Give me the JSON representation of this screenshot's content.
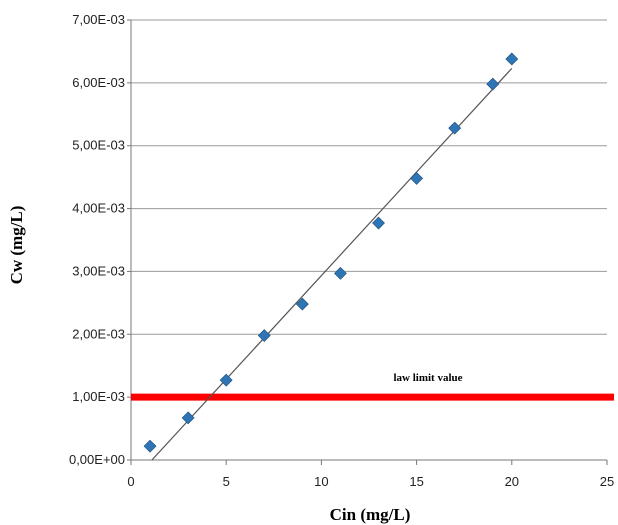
{
  "chart_data": {
    "type": "scatter",
    "title": "",
    "xlabel": "Cin (mg/L)",
    "ylabel": "Cw (mg/L)",
    "xlim": [
      0,
      25
    ],
    "ylim": [
      0,
      0.007
    ],
    "x_ticks": [
      0,
      5,
      10,
      15,
      20,
      25
    ],
    "x_tick_labels": [
      "0",
      "5",
      "10",
      "15",
      "20",
      "25"
    ],
    "y_ticks": [
      0,
      0.001,
      0.002,
      0.003,
      0.004,
      0.005,
      0.006,
      0.007
    ],
    "y_tick_labels": [
      "0,00E+00",
      "1,00E-03",
      "2,00E-03",
      "3,00E-03",
      "4,00E-03",
      "5,00E-03",
      "6,00E-03",
      "7,00E-03"
    ],
    "grid": "horizontal",
    "legend": "none",
    "series": [
      {
        "marker": "diamond",
        "color": "#2e75b6",
        "x": [
          1,
          3,
          5,
          7,
          9,
          11,
          13,
          15,
          17,
          19,
          20
        ],
        "y": [
          0.00022,
          0.00067,
          0.00127,
          0.00198,
          0.00248,
          0.00297,
          0.00377,
          0.00448,
          0.00528,
          0.00598,
          0.00638
        ]
      }
    ],
    "trendline": {
      "color": "#555555",
      "points": [
        [
          1.1,
          0
        ],
        [
          20,
          0.00623
        ]
      ]
    },
    "reference_line": {
      "y": 0.001,
      "color": "#ff0000",
      "label": "law limit value"
    }
  }
}
